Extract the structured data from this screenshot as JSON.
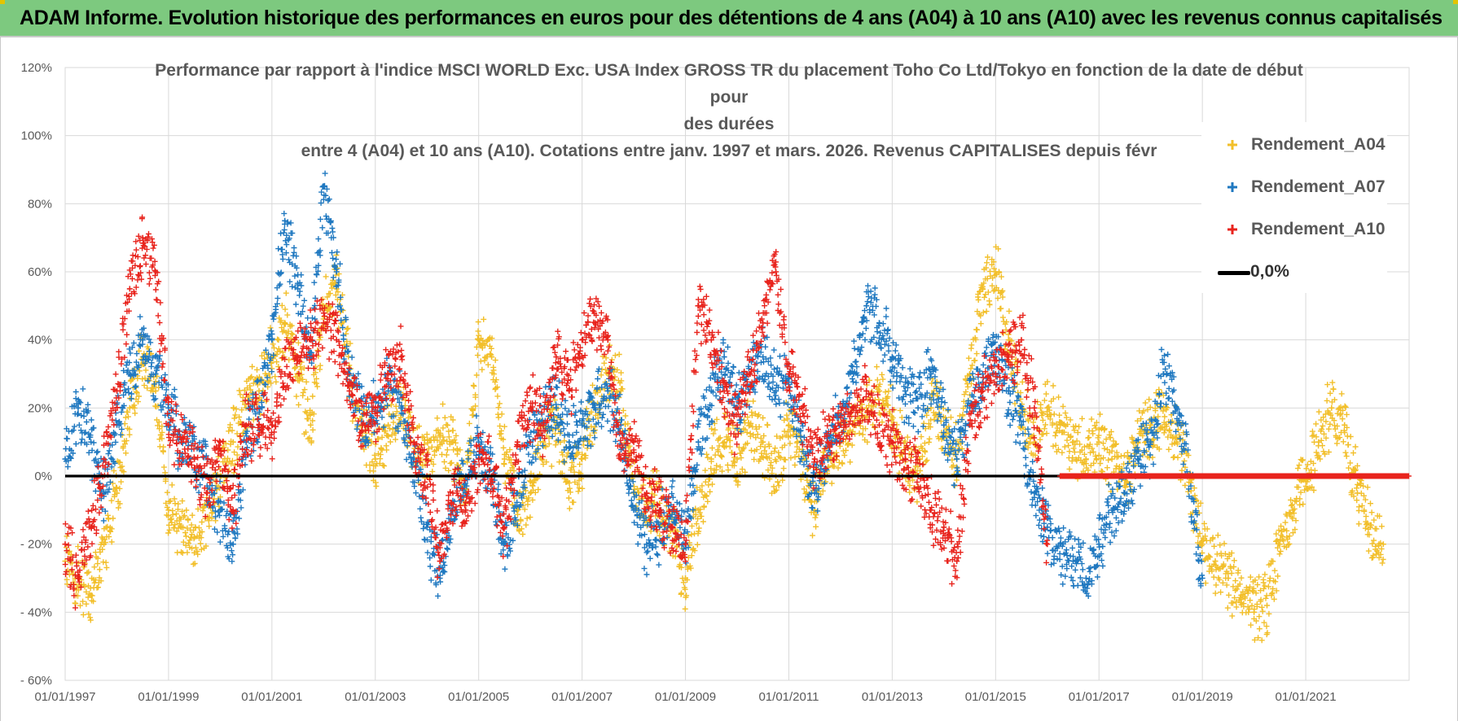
{
  "banner": {
    "title": "ADAM Informe. Evolution historique des performances en euros pour des détentions de 4 ans (A04) à 10 ans (A10) avec les revenus connus capitalisés",
    "background": "#7dc97f"
  },
  "chart_data": {
    "type": "scatter",
    "title_lines": [
      "Performance par rapport à l'indice MSCI WORLD Exc. USA Index GROSS TR  du placement Toho Co Ltd/Tokyo en fonction de la date de début pour",
      "des durées",
      "entre 4 (A04) et 10 ans (A10). Cotations entre janv. 1997 et mars. 2026. Revenus CAPITALISES depuis févr"
    ],
    "xlabel": "",
    "ylabel": "",
    "xlim": [
      1997.0,
      2023.0
    ],
    "ylim": [
      -60,
      120
    ],
    "x_ticks": [
      "01/01/1997",
      "01/01/1999",
      "01/01/2001",
      "01/01/2003",
      "01/01/2005",
      "01/01/2007",
      "01/01/2009",
      "01/01/2011",
      "01/01/2013",
      "01/01/2015",
      "01/01/2017",
      "01/01/2019",
      "01/01/2021"
    ],
    "y_ticks": [
      "120%",
      "100%",
      "80%",
      "60%",
      "40%",
      "20%",
      "0%",
      "- 20%",
      "- 40%",
      "- 60%"
    ],
    "grid": true,
    "legend_position": "top-right",
    "zero_line": {
      "name": "0,0%",
      "value": 0,
      "color": "#000000"
    },
    "series": [
      {
        "name": "Rendement_A04",
        "color": "#f2bf2a",
        "x": [
          1997.0,
          1997.25,
          1997.5,
          1997.75,
          1998.0,
          1998.25,
          1998.5,
          1998.75,
          1999.0,
          1999.25,
          1999.5,
          1999.75,
          2000.0,
          2000.25,
          2000.5,
          2000.75,
          2001.0,
          2001.25,
          2001.5,
          2001.75,
          2002.0,
          2002.25,
          2002.5,
          2002.75,
          2003.0,
          2003.25,
          2003.5,
          2003.75,
          2004.0,
          2004.25,
          2004.5,
          2004.75,
          2005.0,
          2005.25,
          2005.5,
          2005.75,
          2006.0,
          2006.25,
          2006.5,
          2006.75,
          2007.0,
          2007.25,
          2007.5,
          2007.75,
          2008.0,
          2008.25,
          2008.5,
          2008.75,
          2009.0,
          2009.25,
          2009.5,
          2009.75,
          2010.0,
          2010.25,
          2010.5,
          2010.75,
          2011.0,
          2011.25,
          2011.5,
          2011.75,
          2012.0,
          2012.25,
          2012.5,
          2012.75,
          2013.0,
          2013.25,
          2013.5,
          2013.75,
          2014.0,
          2014.25,
          2014.5,
          2014.75,
          2015.0,
          2015.25,
          2015.5,
          2015.75,
          2016.0,
          2016.25,
          2016.5,
          2016.75,
          2017.0,
          2017.25,
          2017.5,
          2017.75,
          2018.0,
          2018.25,
          2018.5,
          2018.75,
          2019.0,
          2019.25,
          2019.5,
          2019.75,
          2020.0,
          2020.25,
          2020.5,
          2020.75,
          2021.0,
          2021.25,
          2021.5,
          2021.75,
          2022.0,
          2022.25,
          2022.5
        ],
        "y": [
          -25,
          -30,
          -35,
          -20,
          -5,
          20,
          35,
          25,
          -10,
          -15,
          -18,
          -12,
          0,
          10,
          20,
          25,
          35,
          45,
          30,
          15,
          50,
          55,
          30,
          15,
          5,
          15,
          20,
          10,
          5,
          12,
          10,
          -5,
          40,
          35,
          5,
          -10,
          -5,
          10,
          15,
          -2,
          5,
          20,
          30,
          25,
          -5,
          -10,
          -8,
          -15,
          -30,
          -10,
          5,
          10,
          5,
          15,
          10,
          0,
          15,
          5,
          -10,
          5,
          10,
          15,
          20,
          25,
          15,
          5,
          0,
          20,
          15,
          5,
          30,
          55,
          60,
          40,
          20,
          10,
          20,
          15,
          10,
          5,
          10,
          5,
          0,
          10,
          15,
          20,
          10,
          0,
          -20,
          -25,
          -30,
          -35,
          -40,
          -38,
          -20,
          -10,
          0,
          10,
          20,
          15,
          -5,
          -15,
          -20
        ]
      },
      {
        "name": "Rendement_A07",
        "color": "#1f78c0",
        "x": [
          1997.0,
          1997.25,
          1997.5,
          1997.75,
          1998.0,
          1998.25,
          1998.5,
          1998.75,
          1999.0,
          1999.25,
          1999.5,
          1999.75,
          2000.0,
          2000.25,
          2000.5,
          2000.75,
          2001.0,
          2001.25,
          2001.5,
          2001.75,
          2002.0,
          2002.25,
          2002.5,
          2002.75,
          2003.0,
          2003.25,
          2003.5,
          2003.75,
          2004.0,
          2004.25,
          2004.5,
          2004.75,
          2005.0,
          2005.25,
          2005.5,
          2005.75,
          2006.0,
          2006.25,
          2006.5,
          2006.75,
          2007.0,
          2007.25,
          2007.5,
          2007.75,
          2008.0,
          2008.25,
          2008.5,
          2008.75,
          2009.0,
          2009.25,
          2009.5,
          2009.75,
          2010.0,
          2010.25,
          2010.5,
          2010.75,
          2011.0,
          2011.25,
          2011.5,
          2011.75,
          2012.0,
          2012.25,
          2012.5,
          2012.75,
          2013.0,
          2013.25,
          2013.5,
          2013.75,
          2014.0,
          2014.25,
          2014.5,
          2014.75,
          2015.0,
          2015.25,
          2015.5,
          2015.75,
          2016.0,
          2016.25,
          2016.5,
          2016.75,
          2017.0,
          2017.25,
          2017.5,
          2017.75,
          2018.0,
          2018.25,
          2018.5,
          2018.75,
          2019.0
        ],
        "y": [
          5,
          20,
          10,
          -5,
          15,
          30,
          40,
          30,
          20,
          10,
          5,
          0,
          -10,
          -20,
          10,
          20,
          40,
          75,
          55,
          35,
          85,
          60,
          30,
          15,
          20,
          25,
          20,
          5,
          -15,
          -30,
          -10,
          0,
          10,
          0,
          -20,
          -5,
          10,
          15,
          20,
          10,
          15,
          20,
          25,
          15,
          -10,
          -20,
          -15,
          -10,
          -20,
          10,
          25,
          35,
          20,
          30,
          35,
          25,
          30,
          10,
          -5,
          10,
          15,
          30,
          50,
          45,
          35,
          25,
          20,
          30,
          15,
          5,
          20,
          30,
          35,
          25,
          15,
          -5,
          -15,
          -20,
          -25,
          -30,
          -20,
          -10,
          -5,
          5,
          10,
          30,
          20,
          0,
          -30
        ]
      },
      {
        "name": "Rendement_A10",
        "color": "#e8231c",
        "x": [
          1997.0,
          1997.25,
          1997.5,
          1997.75,
          1998.0,
          1998.25,
          1998.5,
          1998.75,
          1999.0,
          1999.25,
          1999.5,
          1999.75,
          2000.0,
          2000.25,
          2000.5,
          2000.75,
          2001.0,
          2001.25,
          2001.5,
          2001.75,
          2002.0,
          2002.25,
          2002.5,
          2002.75,
          2003.0,
          2003.25,
          2003.5,
          2003.75,
          2004.0,
          2004.25,
          2004.5,
          2004.75,
          2005.0,
          2005.25,
          2005.5,
          2005.75,
          2006.0,
          2006.25,
          2006.5,
          2006.75,
          2007.0,
          2007.25,
          2007.5,
          2007.75,
          2008.0,
          2008.25,
          2008.5,
          2008.75,
          2009.0,
          2009.25,
          2009.5,
          2009.75,
          2010.0,
          2010.25,
          2010.5,
          2010.75,
          2011.0,
          2011.25,
          2011.5,
          2011.75,
          2012.0,
          2012.25,
          2012.5,
          2012.75,
          2013.0,
          2013.25,
          2013.5,
          2013.75,
          2014.0,
          2014.25,
          2014.5,
          2014.75,
          2015.0,
          2015.25,
          2015.5,
          2015.75,
          2016.0
        ],
        "y": [
          -20,
          -30,
          -15,
          5,
          25,
          55,
          70,
          60,
          15,
          10,
          5,
          -5,
          10,
          -10,
          15,
          15,
          15,
          30,
          35,
          40,
          45,
          40,
          25,
          15,
          20,
          30,
          35,
          10,
          0,
          -25,
          -5,
          -10,
          5,
          0,
          -15,
          10,
          20,
          15,
          35,
          25,
          40,
          45,
          40,
          5,
          10,
          -5,
          -10,
          -15,
          -20,
          50,
          40,
          25,
          15,
          30,
          45,
          60,
          30,
          20,
          5,
          10,
          15,
          20,
          25,
          15,
          10,
          5,
          0,
          -10,
          -15,
          -25,
          15,
          25,
          30,
          35,
          40,
          20,
          -20
        ]
      }
    ],
    "zero_tail": [
      {
        "name": "Rendement_A10",
        "from": 2016.25,
        "to": 2023.0
      }
    ]
  }
}
